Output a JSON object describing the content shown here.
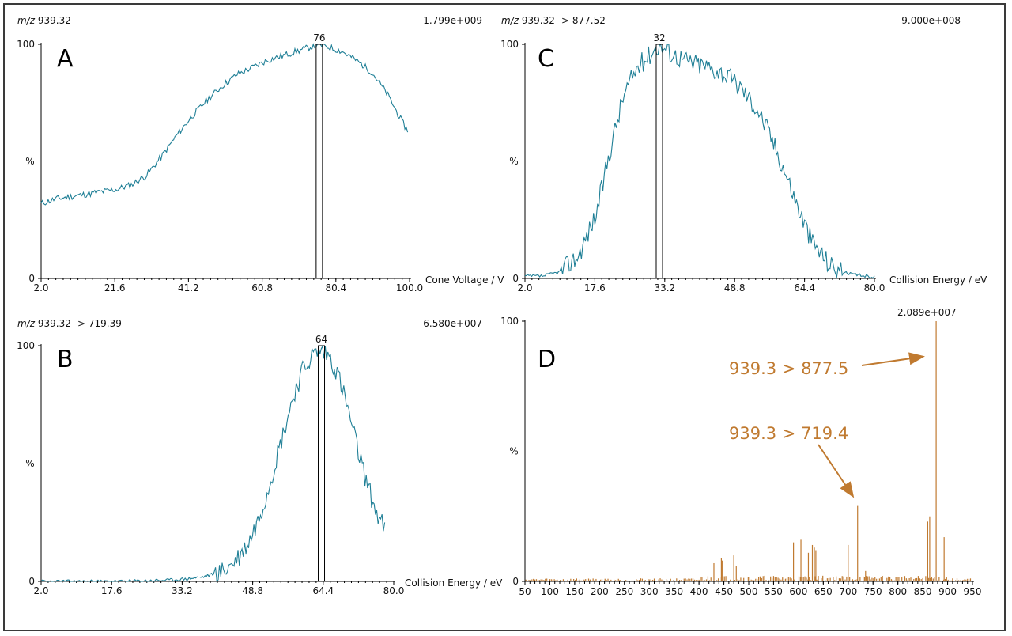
{
  "chart_data": [
    {
      "id": "A",
      "type": "line",
      "panel_label": "A",
      "header_left_italic": "m/z",
      "header_left": "939.32",
      "intensity": "1.799e+009",
      "xlabel": "Cone Voltage / V",
      "ylabel": "%",
      "xticks": [
        "2.0",
        "21.6",
        "41.2",
        "60.8",
        "80.4",
        "100.0"
      ],
      "yticks": [
        "0",
        "100"
      ],
      "xlim": [
        2.0,
        100.0
      ],
      "ylim": [
        0,
        100
      ],
      "peak_label": "76",
      "peak_x": 76,
      "color": "#1f7f96",
      "x": [
        2,
        6,
        10,
        14,
        18,
        22,
        26,
        30,
        34,
        38,
        42,
        46,
        50,
        54,
        58,
        62,
        66,
        70,
        74,
        76,
        78,
        82,
        86,
        90,
        94,
        98,
        99.5
      ],
      "y": [
        32,
        34,
        35,
        36,
        37,
        38,
        40,
        44,
        52,
        61,
        69,
        76,
        82,
        87,
        90,
        93,
        95,
        97,
        99,
        100,
        99,
        97,
        93,
        88,
        79,
        67,
        63
      ]
    },
    {
      "id": "B",
      "type": "line",
      "panel_label": "B",
      "header_left_italic": "m/z",
      "header_left": "939.32 -> 719.39",
      "intensity": "6.580e+007",
      "xlabel": "Collision Energy / eV",
      "ylabel": "%",
      "xticks": [
        "2.0",
        "17.6",
        "33.2",
        "48.8",
        "64.4",
        "80.0"
      ],
      "yticks": [
        "0",
        "100"
      ],
      "xlim": [
        2.0,
        80.0
      ],
      "ylim": [
        0,
        100
      ],
      "peak_label": "64",
      "peak_x": 64,
      "color": "#1f7f96",
      "x": [
        2,
        10,
        20,
        30,
        34,
        38,
        42,
        44,
        46,
        48,
        50,
        52,
        54,
        56,
        58,
        60,
        62,
        64,
        66,
        68,
        70,
        72,
        74,
        76,
        78
      ],
      "y": [
        0,
        0,
        0,
        0.5,
        1,
        2,
        4,
        7,
        11,
        17,
        26,
        38,
        52,
        66,
        80,
        90,
        96,
        98,
        95,
        86,
        72,
        56,
        42,
        30,
        22
      ]
    },
    {
      "id": "C",
      "type": "line",
      "panel_label": "C",
      "header_left_italic": "m/z",
      "header_left": "939.32 -> 877.52",
      "intensity": "9.000e+008",
      "xlabel": "Collision Energy / eV",
      "ylabel": "%",
      "xticks": [
        "2.0",
        "17.6",
        "33.2",
        "48.8",
        "64.4",
        "80.0"
      ],
      "yticks": [
        "0",
        "100"
      ],
      "xlim": [
        2.0,
        80.0
      ],
      "ylim": [
        0,
        100
      ],
      "peak_label": "32",
      "peak_x": 32,
      "color": "#1f7f96",
      "x": [
        2,
        6,
        10,
        14,
        18,
        21,
        24,
        27,
        30,
        32,
        34,
        38,
        42,
        46,
        50,
        54,
        57,
        60,
        63,
        66,
        70,
        74,
        78,
        80
      ],
      "y": [
        1,
        1,
        3,
        10,
        28,
        55,
        78,
        90,
        96,
        100,
        97,
        93,
        91,
        88,
        82,
        72,
        60,
        46,
        30,
        16,
        6,
        2,
        1,
        0.5
      ]
    },
    {
      "id": "D",
      "type": "bar",
      "panel_label": "D",
      "intensity": "2.089e+007",
      "ylabel": "%",
      "xticks": [
        "50",
        "100",
        "150",
        "200",
        "250",
        "300",
        "350",
        "400",
        "450",
        "500",
        "550",
        "600",
        "650",
        "700",
        "750",
        "800",
        "850",
        "900",
        "950"
      ],
      "yticks": [
        "0",
        "100"
      ],
      "xlim": [
        50,
        950
      ],
      "ylim": [
        0,
        100
      ],
      "color": "#c07a30",
      "annotations": [
        "939.3 > 877.5",
        "939.3 > 719.4"
      ],
      "x": [
        430,
        445,
        447,
        470,
        475,
        590,
        605,
        620,
        628,
        632,
        635,
        700,
        719,
        735,
        860,
        864,
        877,
        893
      ],
      "y": [
        7,
        9,
        8,
        10,
        6,
        15,
        16,
        11,
        14,
        13,
        12,
        14,
        29,
        4,
        23,
        25,
        100,
        17
      ]
    }
  ]
}
